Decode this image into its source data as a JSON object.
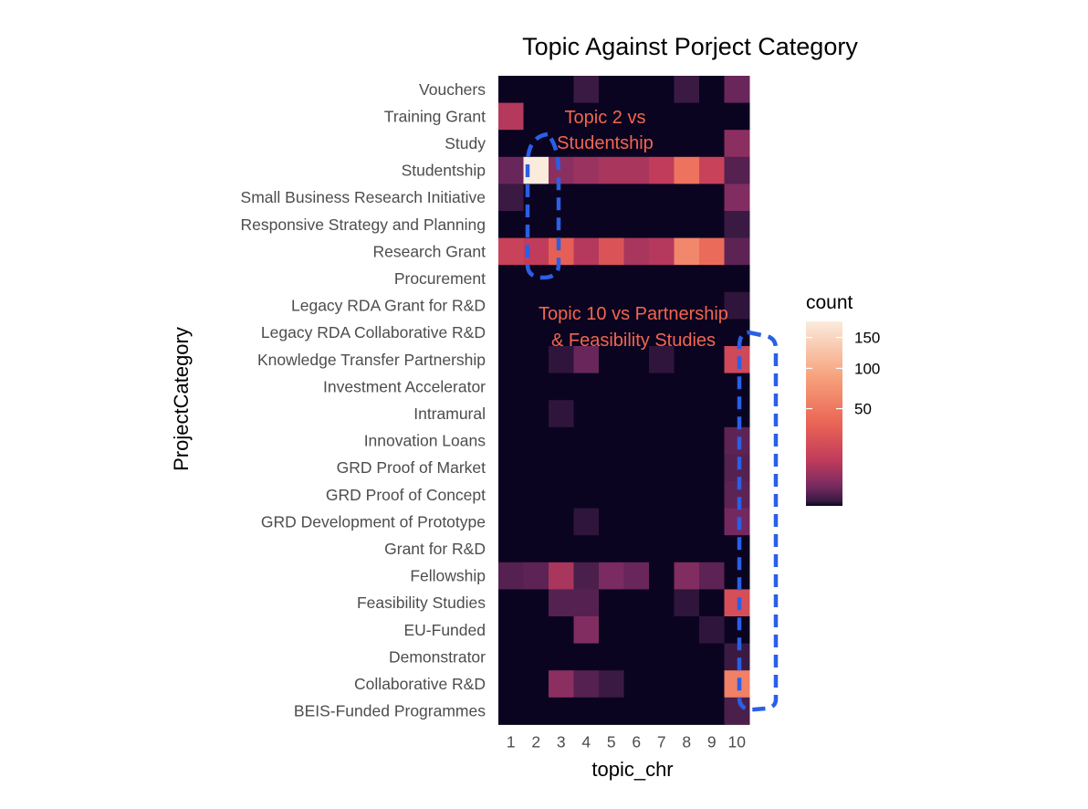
{
  "chart_data": {
    "type": "heatmap",
    "title": "Topic Against Porject Category",
    "xlabel": "topic_chr",
    "ylabel": "ProjectCategory",
    "x": [
      "1",
      "2",
      "3",
      "4",
      "5",
      "6",
      "7",
      "8",
      "9",
      "10"
    ],
    "y": [
      "Vouchers",
      "Training Grant",
      "Study",
      "Studentship",
      "Small Business Research Initiative",
      "Responsive Strategy and Planning",
      "Research Grant",
      "Procurement",
      "Legacy RDA Grant for R&D",
      "Legacy RDA Collaborative R&D",
      "Knowledge Transfer Partnership",
      "Investment Accelerator",
      "Intramural",
      "Innovation Loans",
      "GRD Proof of Market",
      "GRD Proof of Concept",
      "GRD Development of Prototype",
      "Grant for R&D",
      "Fellowship",
      "Feasibility Studies",
      "EU-Funded",
      "Demonstrator",
      "Collaborative R&D",
      "BEIS-Funded Programmes"
    ],
    "values": [
      [
        0,
        0,
        0,
        5,
        0,
        0,
        0,
        5,
        0,
        15
      ],
      [
        40,
        0,
        0,
        0,
        0,
        0,
        0,
        0,
        0,
        0
      ],
      [
        0,
        0,
        0,
        0,
        0,
        0,
        0,
        0,
        0,
        25
      ],
      [
        15,
        180,
        25,
        30,
        35,
        35,
        45,
        90,
        50,
        10
      ],
      [
        5,
        0,
        0,
        0,
        0,
        0,
        0,
        0,
        0,
        22
      ],
      [
        0,
        0,
        0,
        0,
        0,
        0,
        0,
        0,
        0,
        5
      ],
      [
        50,
        45,
        75,
        40,
        65,
        35,
        40,
        105,
        85,
        12
      ],
      [
        0,
        0,
        0,
        0,
        0,
        0,
        0,
        0,
        0,
        0
      ],
      [
        0,
        0,
        0,
        0,
        0,
        0,
        0,
        0,
        0,
        3
      ],
      [
        0,
        0,
        0,
        0,
        0,
        0,
        0,
        0,
        0,
        0
      ],
      [
        0,
        0,
        3,
        15,
        0,
        0,
        3,
        0,
        0,
        55
      ],
      [
        0,
        0,
        0,
        0,
        0,
        0,
        0,
        0,
        0,
        0
      ],
      [
        0,
        0,
        3,
        0,
        0,
        0,
        0,
        0,
        0,
        0
      ],
      [
        0,
        0,
        0,
        0,
        0,
        0,
        0,
        0,
        0,
        12
      ],
      [
        0,
        0,
        0,
        0,
        0,
        0,
        0,
        0,
        0,
        10
      ],
      [
        0,
        0,
        0,
        0,
        0,
        0,
        0,
        0,
        0,
        12
      ],
      [
        0,
        0,
        0,
        3,
        0,
        0,
        0,
        0,
        0,
        18
      ],
      [
        0,
        0,
        0,
        0,
        0,
        0,
        0,
        0,
        0,
        0
      ],
      [
        10,
        12,
        35,
        8,
        20,
        15,
        0,
        22,
        12,
        0
      ],
      [
        0,
        0,
        10,
        10,
        0,
        0,
        0,
        3,
        0,
        60
      ],
      [
        0,
        0,
        0,
        22,
        0,
        0,
        0,
        0,
        3,
        0
      ],
      [
        0,
        0,
        0,
        0,
        0,
        0,
        0,
        0,
        0,
        5
      ],
      [
        0,
        0,
        25,
        10,
        5,
        0,
        0,
        0,
        0,
        100
      ],
      [
        0,
        0,
        0,
        0,
        0,
        0,
        0,
        0,
        0,
        8
      ]
    ],
    "legend": {
      "title": "count",
      "ticks": [
        150,
        100,
        50
      ],
      "range": [
        0,
        180
      ],
      "colors": [
        "#0b0420",
        "#3a1a43",
        "#7a2b62",
        "#c13c5b",
        "#ea6455",
        "#f6a07a",
        "#faebdd"
      ]
    },
    "grid": false,
    "legend_position": "right",
    "annotations": [
      {
        "lines": [
          "Topic 2  vs",
          "Studentship"
        ],
        "color": "#f0664f"
      },
      {
        "lines": [
          "Topic 10 vs Partnership",
          "& Feasibility Studies"
        ],
        "color": "#f0664f"
      }
    ],
    "highlight_color": "#2a5fe6"
  }
}
